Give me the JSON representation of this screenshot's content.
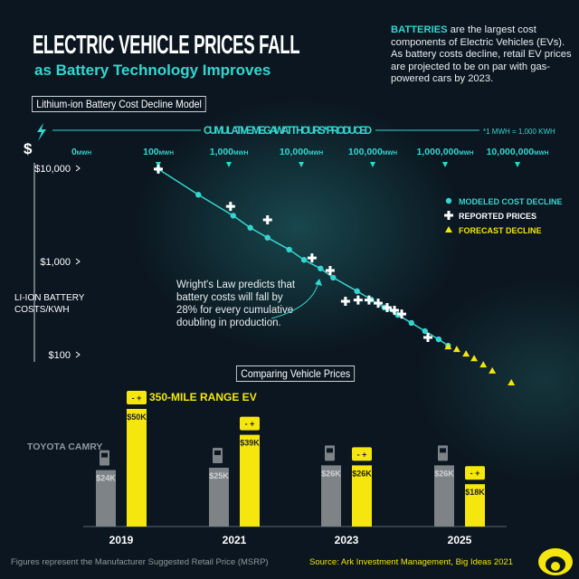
{
  "header": {
    "title": "ELECTRIC VEHICLE PRICES FALL",
    "subtitle": "as Battery Technology Improves",
    "intro_highlight": "BATTERIES",
    "intro_rest": " are the largest cost components of Electric Vehicles (EVs). As battery costs decline, retail EV prices are projected to be on par with gas-powered cars by 2023."
  },
  "colors": {
    "teal": "#33d6cf",
    "yellow": "#f5e60d",
    "gray": "#7d8387",
    "bg": "#0b1620"
  },
  "chart_data": [
    {
      "type": "scatter",
      "title": "Lithium-ion Battery Cost Decline Model",
      "xlabel": "CUMULATIVE MEGAWATT HOURS* PRODUCED",
      "xnote": "*1 MWH = 1,000 KWH",
      "x_scale": "log",
      "x_ticks": [
        {
          "label": "0",
          "unit": "MWH"
        },
        {
          "label": "100",
          "unit": "MWH"
        },
        {
          "label": "1,000",
          "unit": "MWH"
        },
        {
          "label": "10,000",
          "unit": "MWH"
        },
        {
          "label": "100,000",
          "unit": "MWH"
        },
        {
          "label": "1,000,000",
          "unit": "MWH"
        },
        {
          "label": "10,000,000",
          "unit": "MWH"
        }
      ],
      "ylabel": "LI-ION BATTERY COSTS/KWH",
      "y_symbol": "$",
      "y_scale": "log",
      "y_ticks": [
        "$10,000",
        "$1,000",
        "$100"
      ],
      "y_tick_values": [
        10000,
        1000,
        100
      ],
      "legend_position": "right",
      "series": [
        {
          "name": "MODELED COST DECLINE",
          "marker": "circle",
          "color": "#33d6cf",
          "points": [
            [
              100,
              9800
            ],
            [
              360,
              5200
            ],
            [
              1100,
              3100
            ],
            [
              1900,
              2300
            ],
            [
              3300,
              1800
            ],
            [
              6600,
              1340
            ],
            [
              10600,
              1040
            ],
            [
              18000,
              840
            ],
            [
              27000,
              670
            ],
            [
              58000,
              480
            ],
            [
              91000,
              390
            ],
            [
              139000,
              320
            ],
            [
              214000,
              267
            ],
            [
              330000,
              219
            ],
            [
              510000,
              179
            ],
            [
              790000,
              146
            ],
            [
              1070000,
              125
            ]
          ]
        },
        {
          "name": "REPORTED PRICES",
          "marker": "plus",
          "color": "#ffffff",
          "points": [
            [
              100,
              9800
            ],
            [
              1010,
              3900
            ],
            [
              3300,
              2800
            ],
            [
              13700,
              1090
            ],
            [
              24500,
              800
            ],
            [
              40000,
              374
            ],
            [
              60000,
              386
            ],
            [
              85000,
              386
            ],
            [
              114000,
              357
            ],
            [
              152000,
              320
            ],
            [
              192000,
              299
            ],
            [
              242000,
              273
            ],
            [
              560000,
              153
            ]
          ]
        },
        {
          "name": "FORECAST DECLINE",
          "marker": "triangle",
          "color": "#f5e60d",
          "points": [
            [
              1070000,
              122
            ],
            [
              1410000,
              114
            ],
            [
              1900000,
              102
            ],
            [
              2460000,
              91
            ],
            [
              3300000,
              78
            ],
            [
              4400000,
              67
            ],
            [
              8100000,
              50
            ]
          ]
        }
      ],
      "annotation": "Wright's Law predicts that battery costs will fall by 28% for every cumulative doubling in production."
    },
    {
      "type": "bar",
      "title": "Comparing Vehicle Prices",
      "categories": [
        "2019",
        "2021",
        "2023",
        "2025"
      ],
      "series": [
        {
          "name": "TOYOTA CAMRY",
          "color": "#7d8387",
          "values": [
            24,
            25,
            26,
            26
          ],
          "labels": [
            "$24K",
            "$25K",
            "$26K",
            "$26K"
          ]
        },
        {
          "name": "350-MILE RANGE EV",
          "color": "#f5e60d",
          "values": [
            50,
            39,
            26,
            18
          ],
          "labels": [
            "$50K",
            "$39K",
            "$26K",
            "$18K"
          ]
        }
      ],
      "unit": "$K"
    }
  ],
  "footer": {
    "note": "Figures represent the Manufacturer Suggested Retail Price (MSRP)",
    "source": "Source: Ark Investment Management, Big Ideas 2021"
  }
}
